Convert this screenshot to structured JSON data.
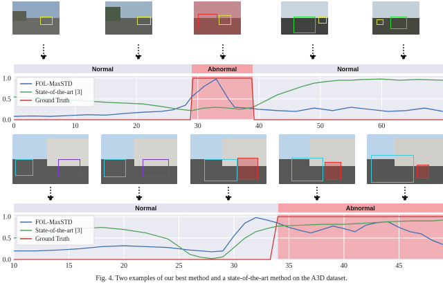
{
  "chart_data": [
    {
      "type": "line",
      "title": "",
      "xlabel": "",
      "ylabel": "",
      "xlim": [
        0,
        70
      ],
      "ylim": [
        0,
        1.05
      ],
      "xticks": [
        "0",
        "10",
        "20",
        "30",
        "40",
        "50",
        "60"
      ],
      "yticks": [
        "0.0",
        "0.5",
        "1.0"
      ],
      "legend": {
        "placement": "top-left",
        "entries": [
          "FOL-MaxSTD",
          "State-of-the-art [3]",
          "Ground Truth"
        ]
      },
      "phases": [
        {
          "label": "Normal",
          "kind": "normal",
          "range": [
            0,
            29
          ]
        },
        {
          "label": "Abnormal",
          "kind": "abnormal",
          "range": [
            29,
            39
          ]
        },
        {
          "label": "Normal",
          "kind": "normal",
          "range": [
            39,
            70
          ]
        }
      ],
      "abnormal_region": [
        29,
        39
      ],
      "series": [
        {
          "name": "FOL-MaxSTD",
          "color": "#3d6fb5",
          "x": [
            0,
            3,
            6,
            9,
            12,
            15,
            18,
            21,
            24,
            26,
            28,
            29,
            31,
            33,
            35,
            36,
            38,
            40,
            43,
            46,
            49,
            52,
            55,
            58,
            61,
            64,
            67,
            70
          ],
          "y": [
            0.08,
            0.09,
            0.08,
            0.1,
            0.12,
            0.11,
            0.15,
            0.18,
            0.2,
            0.24,
            0.35,
            0.55,
            0.8,
            0.98,
            0.5,
            0.3,
            0.28,
            0.25,
            0.22,
            0.2,
            0.28,
            0.22,
            0.3,
            0.25,
            0.2,
            0.22,
            0.28,
            0.2
          ]
        },
        {
          "name": "State-of-the-art [3]",
          "color": "#4ea35a",
          "x": [
            0,
            3,
            6,
            9,
            12,
            15,
            18,
            21,
            24,
            27,
            29,
            31,
            33,
            35,
            37,
            39,
            41,
            43,
            45,
            47,
            49,
            51,
            53,
            55,
            57,
            60,
            63,
            66,
            70
          ],
          "y": [
            0.55,
            0.52,
            0.5,
            0.48,
            0.45,
            0.42,
            0.4,
            0.38,
            0.32,
            0.25,
            0.22,
            0.28,
            0.3,
            0.28,
            0.25,
            0.3,
            0.45,
            0.6,
            0.7,
            0.8,
            0.88,
            0.92,
            0.95,
            0.95,
            0.97,
            0.98,
            0.95,
            0.97,
            0.95
          ]
        },
        {
          "name": "Ground Truth",
          "color": "#cc3333",
          "x": [
            0,
            28.8,
            29.2,
            38.8,
            39.2,
            70
          ],
          "y": [
            0,
            0,
            1,
            1,
            0,
            0
          ]
        }
      ]
    },
    {
      "type": "line",
      "title": "",
      "xlabel": "",
      "ylabel": "",
      "xlim": [
        10,
        49
      ],
      "ylim": [
        0,
        1.05
      ],
      "xticks": [
        "10",
        "15",
        "20",
        "25",
        "30",
        "35",
        "40",
        "45"
      ],
      "yticks": [
        "0.0",
        "0.5",
        "1.0"
      ],
      "legend": {
        "placement": "top-left",
        "entries": [
          "FOL-MaxSTD",
          "State-of-the-art [3]",
          "Ground Truth"
        ]
      },
      "phases": [
        {
          "label": "Normal",
          "kind": "normal",
          "range": [
            10,
            34
          ]
        },
        {
          "label": "Abnormal",
          "kind": "abnormal",
          "range": [
            34,
            49
          ]
        }
      ],
      "abnormal_region": [
        34,
        49
      ],
      "series": [
        {
          "name": "FOL-MaxSTD",
          "color": "#3d6fb5",
          "x": [
            10,
            12,
            14,
            16,
            18,
            20,
            22,
            24,
            26,
            28,
            29,
            30,
            31,
            32,
            33,
            34,
            35,
            36,
            37,
            38,
            39,
            40,
            41,
            42,
            43,
            44,
            45,
            46,
            47,
            48,
            49
          ],
          "y": [
            0.2,
            0.2,
            0.22,
            0.25,
            0.3,
            0.32,
            0.3,
            0.28,
            0.22,
            0.18,
            0.2,
            0.55,
            0.85,
            0.98,
            0.92,
            0.85,
            0.75,
            0.68,
            0.62,
            0.7,
            0.78,
            0.72,
            0.65,
            0.8,
            0.86,
            0.88,
            0.75,
            0.65,
            0.6,
            0.45,
            0.35
          ]
        },
        {
          "name": "State-of-the-art [3]",
          "color": "#4ea35a",
          "x": [
            10,
            12,
            14,
            16,
            18,
            20,
            22,
            24,
            25,
            26,
            27,
            28,
            29,
            30,
            31,
            32,
            33,
            34,
            36,
            38,
            40,
            42,
            44,
            46,
            48,
            49
          ],
          "y": [
            0.5,
            0.55,
            0.65,
            0.72,
            0.75,
            0.7,
            0.62,
            0.48,
            0.3,
            0.12,
            0.05,
            0.02,
            0.06,
            0.28,
            0.5,
            0.65,
            0.72,
            0.78,
            0.8,
            0.82,
            0.82,
            0.85,
            0.88,
            0.9,
            0.9,
            0.92
          ]
        },
        {
          "name": "Ground Truth",
          "color": "#cc3333",
          "x": [
            10,
            33.3,
            34.0,
            49
          ],
          "y": [
            0,
            0,
            1,
            1
          ]
        }
      ]
    }
  ],
  "caption": "Fig. 4. Two examples of our best method and a state-of-the-art method on the A3D dataset."
}
